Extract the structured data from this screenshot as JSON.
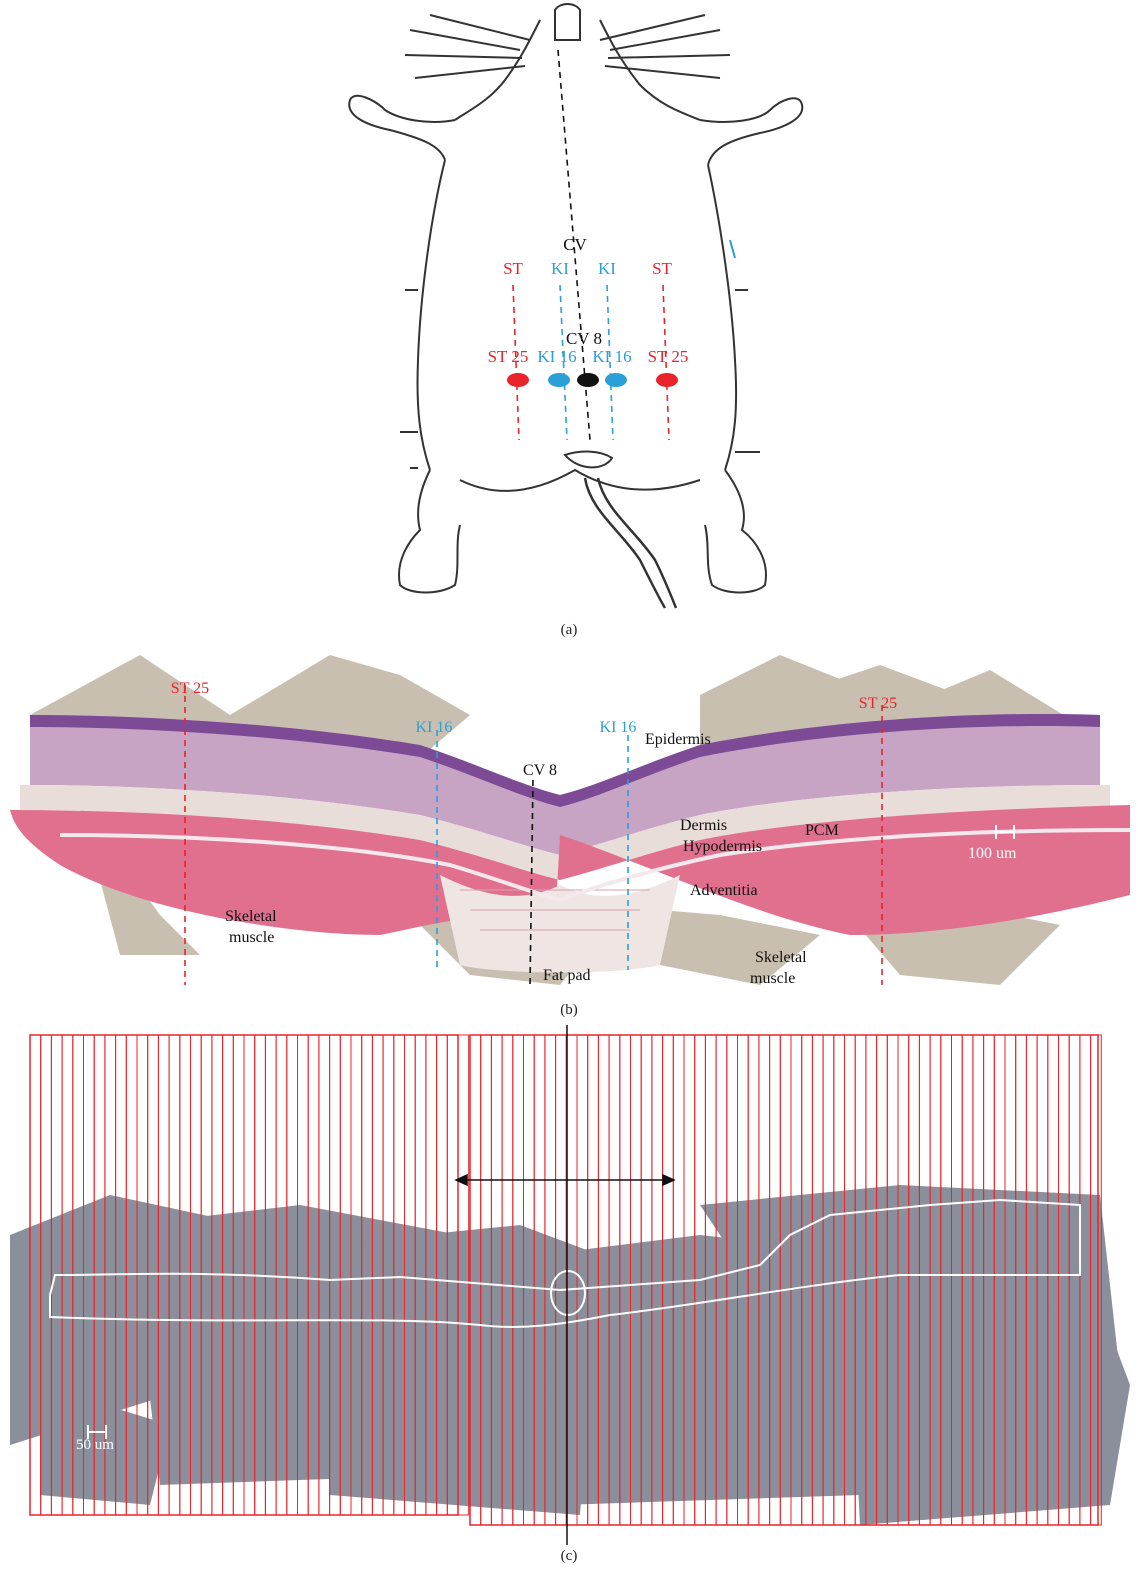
{
  "panel_a": {
    "caption": "(a)",
    "meridian_labels": {
      "st_left": "ST",
      "ki_left": "KI",
      "cv": "CV",
      "ki_right": "KI",
      "st_right": "ST"
    },
    "point_labels": {
      "cv8": "CV 8",
      "st25_left": "ST 25",
      "ki16_left": "KI 16",
      "ki16_right": "KI 16",
      "st25_right": "ST 25"
    },
    "colors": {
      "st": "#e8232a",
      "ki": "#2a9fd8",
      "cv": "#111111"
    }
  },
  "panel_b": {
    "caption": "(b)",
    "labels": {
      "st25_left": "ST 25",
      "ki16_left": "KI 16",
      "cv8": "CV 8",
      "ki16_right": "KI 16",
      "st25_right": "ST 25",
      "epidermis": "Epidermis",
      "dermis": "Dermis",
      "hypodermis": "Hypodermis",
      "pcm": "PCM",
      "adventitia": "Adventitia",
      "skeletal_left_1": "Skeletal",
      "skeletal_left_2": "muscle",
      "skeletal_right_1": "Skeletal",
      "skeletal_right_2": "muscle",
      "fat_pad": "Fat pad",
      "scale": "100 um"
    }
  },
  "panel_c": {
    "caption": "(c)",
    "scale": "50 um"
  }
}
